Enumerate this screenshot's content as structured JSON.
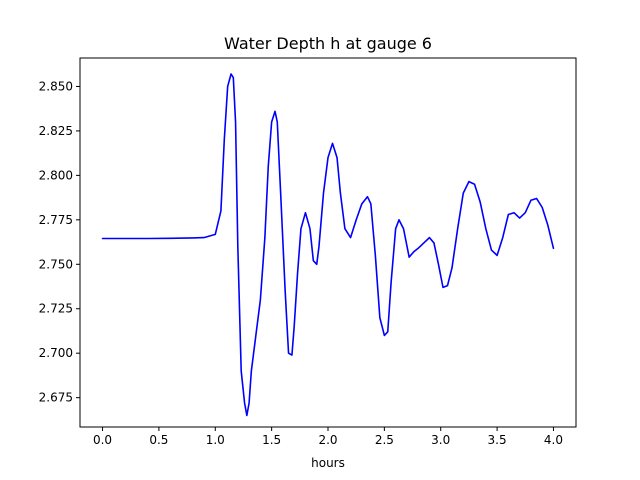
{
  "chart_data": {
    "type": "line",
    "title": "Water Depth h at gauge 6",
    "xlabel": "hours",
    "ylabel": "",
    "xlim": [
      -0.2,
      4.2
    ],
    "ylim": [
      2.6585,
      2.866
    ],
    "x_ticks": [
      0.0,
      0.5,
      1.0,
      1.5,
      2.0,
      2.5,
      3.0,
      3.5,
      4.0
    ],
    "x_tick_labels": [
      "0.0",
      "0.5",
      "1.0",
      "1.5",
      "2.0",
      "2.5",
      "3.0",
      "3.5",
      "4.0"
    ],
    "y_ticks": [
      2.675,
      2.7,
      2.725,
      2.75,
      2.775,
      2.8,
      2.825,
      2.85
    ],
    "y_tick_labels": [
      "2.675",
      "2.700",
      "2.725",
      "2.750",
      "2.775",
      "2.800",
      "2.825",
      "2.850"
    ],
    "grid": false,
    "series": [
      {
        "color": "#0000ff",
        "x": [
          0.0,
          0.2,
          0.4,
          0.6,
          0.8,
          0.9,
          1.0,
          1.05,
          1.08,
          1.11,
          1.14,
          1.16,
          1.18,
          1.2,
          1.23,
          1.26,
          1.28,
          1.3,
          1.32,
          1.35,
          1.4,
          1.44,
          1.47,
          1.5,
          1.53,
          1.55,
          1.58,
          1.62,
          1.65,
          1.68,
          1.7,
          1.73,
          1.76,
          1.8,
          1.84,
          1.87,
          1.9,
          1.92,
          1.96,
          2.0,
          2.04,
          2.08,
          2.11,
          2.15,
          2.2,
          2.25,
          2.3,
          2.35,
          2.38,
          2.42,
          2.46,
          2.5,
          2.53,
          2.56,
          2.6,
          2.63,
          2.67,
          2.72,
          2.76,
          2.8,
          2.85,
          2.9,
          2.94,
          2.98,
          3.02,
          3.06,
          3.1,
          3.15,
          3.2,
          3.25,
          3.3,
          3.35,
          3.4,
          3.45,
          3.5,
          3.55,
          3.6,
          3.65,
          3.7,
          3.75,
          3.8,
          3.85,
          3.9,
          3.95,
          4.0
        ],
        "y": [
          2.7645,
          2.7645,
          2.7645,
          2.7646,
          2.7648,
          2.765,
          2.7668,
          2.78,
          2.82,
          2.85,
          2.857,
          2.855,
          2.83,
          2.76,
          2.69,
          2.672,
          2.665,
          2.672,
          2.69,
          2.705,
          2.73,
          2.765,
          2.805,
          2.83,
          2.836,
          2.83,
          2.79,
          2.735,
          2.7,
          2.699,
          2.715,
          2.745,
          2.77,
          2.779,
          2.77,
          2.752,
          2.75,
          2.76,
          2.79,
          2.81,
          2.818,
          2.81,
          2.79,
          2.77,
          2.765,
          2.775,
          2.784,
          2.788,
          2.784,
          2.755,
          2.72,
          2.71,
          2.712,
          2.74,
          2.77,
          2.775,
          2.77,
          2.754,
          2.757,
          2.759,
          2.762,
          2.765,
          2.762,
          2.75,
          2.737,
          2.738,
          2.748,
          2.77,
          2.79,
          2.7965,
          2.795,
          2.785,
          2.77,
          2.758,
          2.755,
          2.765,
          2.778,
          2.779,
          2.776,
          2.779,
          2.786,
          2.787,
          2.782,
          2.772,
          2.759
        ]
      }
    ]
  }
}
